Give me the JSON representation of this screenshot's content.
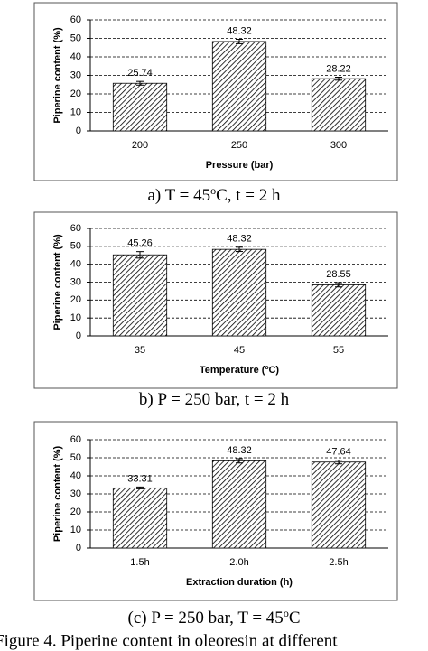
{
  "chart_data": [
    {
      "type": "bar",
      "categories": [
        "200",
        "250",
        "300"
      ],
      "values": [
        25.74,
        48.32,
        28.22
      ],
      "errors": [
        1,
        1.2,
        0.8
      ],
      "color": "#000000",
      "x_label": "Pressure (bar)",
      "y_label": "Piperine content (%)",
      "ylim": [
        0,
        60
      ],
      "yticks": [
        0,
        10,
        20,
        30,
        40,
        50,
        60
      ],
      "grid": true,
      "caption": {
        "pre": "a) T = 45",
        "sup": "o",
        "post": "C, t = 2 h"
      }
    },
    {
      "type": "bar",
      "categories": [
        "35",
        "45",
        "55"
      ],
      "values": [
        45.26,
        48.32,
        28.55
      ],
      "errors": [
        1.8,
        1.2,
        1.2
      ],
      "color": "#000000",
      "x_label": "Temperature (ºC)",
      "y_label": "Piperine content (%)",
      "ylim": [
        0,
        60
      ],
      "yticks": [
        0,
        10,
        20,
        30,
        40,
        50,
        60
      ],
      "grid": true,
      "caption": {
        "pre": "b) P = 250 bar, t = 2 h",
        "sup": "",
        "post": ""
      }
    },
    {
      "type": "bar",
      "categories": [
        "1.5h",
        "2.0h",
        "2.5h"
      ],
      "values": [
        33.31,
        48.32,
        47.64
      ],
      "errors": [
        0.5,
        1.2,
        1
      ],
      "color": "#000000",
      "x_label": "Extraction duration (h)",
      "y_label": "Piperine content (%)",
      "ylim": [
        0,
        60
      ],
      "yticks": [
        0,
        10,
        20,
        30,
        40,
        50,
        60
      ],
      "grid": true,
      "caption": {
        "pre": "(c) P = 250 bar, T = 45",
        "sup": "o",
        "post": "C"
      }
    }
  ],
  "figure_caption": "Figure 4. Piperine content in oleoresin at different"
}
